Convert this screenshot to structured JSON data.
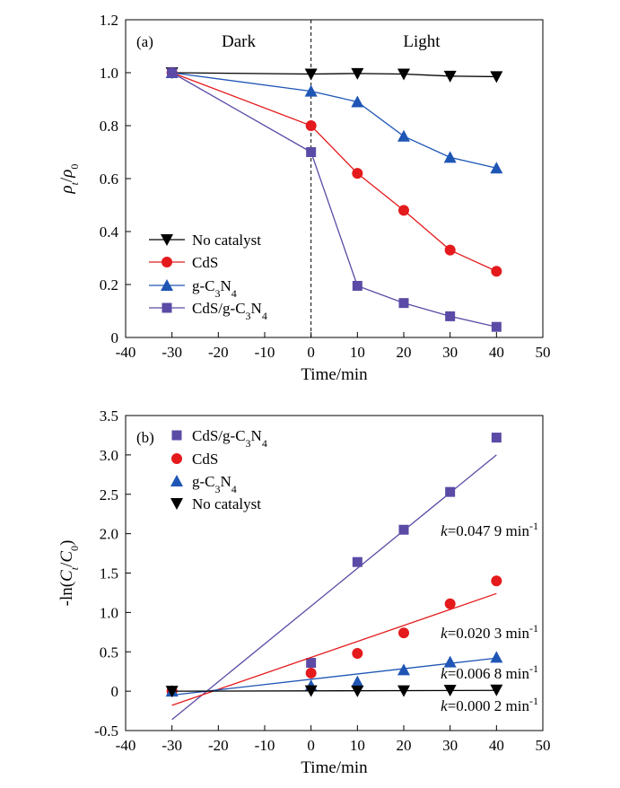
{
  "chart_data": [
    {
      "panel": "(a)",
      "type": "line",
      "region_labels": [
        "Dark",
        "Light"
      ],
      "xlabel": "Time/min",
      "ylabel": "ρt/ρ0",
      "xlim": [
        -40,
        50
      ],
      "ylim": [
        0,
        1.2
      ],
      "xticks": [
        -40,
        -30,
        -20,
        -10,
        0,
        10,
        20,
        30,
        40,
        50
      ],
      "yticks": [
        "0",
        "0.2",
        "0.4",
        "0.6",
        "0.8",
        "1.0",
        "1.2"
      ],
      "divider_x": 0,
      "x": [
        -30,
        0,
        10,
        20,
        30,
        40
      ],
      "legend_position": "bottom-left",
      "series": [
        {
          "name": "No catalyst",
          "marker": "triangle-down",
          "color": "#000000",
          "values": [
            1.0,
            0.995,
            0.997,
            0.995,
            0.987,
            0.985
          ]
        },
        {
          "name": "CdS",
          "marker": "circle",
          "color": "#e41a1c",
          "values": [
            1.0,
            0.8,
            0.62,
            0.48,
            0.33,
            0.25
          ]
        },
        {
          "name": "g-C3N4",
          "marker": "triangle-up",
          "color": "#1f56b5",
          "values": [
            1.0,
            0.93,
            0.89,
            0.76,
            0.68,
            0.64
          ]
        },
        {
          "name": "CdS/g-C3N4",
          "marker": "square",
          "color": "#5b4ba6",
          "values": [
            1.0,
            0.7,
            0.195,
            0.13,
            0.08,
            0.04
          ]
        }
      ]
    },
    {
      "panel": "(b)",
      "type": "scatter",
      "xlabel": "Time/min",
      "ylabel": "-ln(Ct/C0)",
      "xlim": [
        -40,
        50
      ],
      "ylim": [
        -0.5,
        3.5
      ],
      "xticks": [
        -40,
        -30,
        -20,
        -10,
        0,
        10,
        20,
        30,
        40,
        50
      ],
      "yticks": [
        "-0.5",
        "0",
        "0.5",
        "1.0",
        "1.5",
        "2.0",
        "2.5",
        "3.0",
        "3.5"
      ],
      "legend_position": "top-left",
      "series": [
        {
          "name": "CdS/g-C3N4",
          "marker": "square",
          "color": "#5b4ba6",
          "x": [
            -30,
            0,
            10,
            20,
            30,
            40
          ],
          "values": [
            0.0,
            0.36,
            1.64,
            2.05,
            2.53,
            3.22
          ],
          "fit": {
            "x": [
              -30,
              40
            ],
            "y": [
              -0.36,
              3.0
            ]
          },
          "k_label": "=0.047 9 min"
        },
        {
          "name": "CdS",
          "marker": "circle",
          "color": "#e41a1c",
          "x": [
            -30,
            0,
            10,
            20,
            30,
            40
          ],
          "values": [
            0.0,
            0.23,
            0.48,
            0.74,
            1.11,
            1.4
          ],
          "fit": {
            "x": [
              -30,
              40
            ],
            "y": [
              -0.18,
              1.24
            ]
          },
          "k_label": "=0.020 3 min"
        },
        {
          "name": "g-C3N4",
          "marker": "triangle-up",
          "color": "#1f56b5",
          "x": [
            -30,
            0,
            10,
            20,
            30,
            40
          ],
          "values": [
            0.0,
            0.07,
            0.12,
            0.27,
            0.37,
            0.43
          ],
          "fit": {
            "x": [
              -30,
              40
            ],
            "y": [
              -0.05,
              0.42
            ]
          },
          "k_label": "=0.006 8 min"
        },
        {
          "name": "No catalyst",
          "marker": "triangle-down",
          "color": "#000000",
          "x": [
            -30,
            0,
            10,
            20,
            30,
            40
          ],
          "values": [
            0.0,
            0.005,
            0.003,
            0.005,
            0.013,
            0.015
          ],
          "fit": {
            "x": [
              -30,
              40
            ],
            "y": [
              0.0,
              0.01
            ]
          },
          "k_label": "=0.000 2 min"
        }
      ]
    }
  ]
}
